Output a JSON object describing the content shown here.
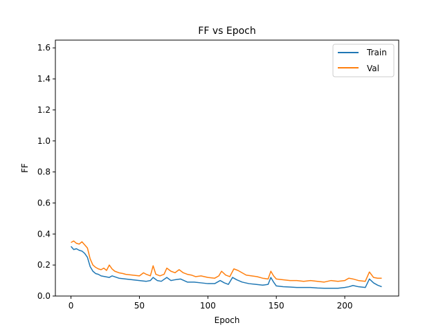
{
  "chart_data": {
    "type": "line",
    "title": "FF vs Epoch",
    "xlabel": "Epoch",
    "ylabel": "FF",
    "xlim": [
      -11.4,
      239.4
    ],
    "ylim": [
      0,
      1.65
    ],
    "xticks": [
      0,
      50,
      100,
      150,
      200
    ],
    "yticks": [
      0.0,
      0.2,
      0.4,
      0.6,
      0.8,
      1.0,
      1.2,
      1.4,
      1.6
    ],
    "grid": false,
    "legend_position": "top-right",
    "series": [
      {
        "name": "Train",
        "color": "#1f77b4",
        "points": [
          [
            0,
            0.32
          ],
          [
            2,
            0.3
          ],
          [
            4,
            0.305
          ],
          [
            6,
            0.295
          ],
          [
            8,
            0.29
          ],
          [
            10,
            0.275
          ],
          [
            12,
            0.25
          ],
          [
            14,
            0.19
          ],
          [
            16,
            0.16
          ],
          [
            18,
            0.145
          ],
          [
            20,
            0.14
          ],
          [
            22,
            0.13
          ],
          [
            25,
            0.125
          ],
          [
            28,
            0.12
          ],
          [
            30,
            0.13
          ],
          [
            35,
            0.115
          ],
          [
            40,
            0.11
          ],
          [
            45,
            0.105
          ],
          [
            50,
            0.1
          ],
          [
            55,
            0.095
          ],
          [
            58,
            0.1
          ],
          [
            60,
            0.12
          ],
          [
            63,
            0.1
          ],
          [
            66,
            0.095
          ],
          [
            70,
            0.12
          ],
          [
            73,
            0.1
          ],
          [
            76,
            0.105
          ],
          [
            80,
            0.11
          ],
          [
            85,
            0.09
          ],
          [
            90,
            0.09
          ],
          [
            95,
            0.085
          ],
          [
            100,
            0.08
          ],
          [
            105,
            0.08
          ],
          [
            109,
            0.1
          ],
          [
            112,
            0.085
          ],
          [
            115,
            0.075
          ],
          [
            118,
            0.12
          ],
          [
            121,
            0.105
          ],
          [
            125,
            0.09
          ],
          [
            130,
            0.08
          ],
          [
            135,
            0.075
          ],
          [
            140,
            0.07
          ],
          [
            144,
            0.075
          ],
          [
            146,
            0.12
          ],
          [
            148,
            0.09
          ],
          [
            150,
            0.065
          ],
          [
            155,
            0.06
          ],
          [
            160,
            0.058
          ],
          [
            165,
            0.055
          ],
          [
            170,
            0.055
          ],
          [
            175,
            0.055
          ],
          [
            180,
            0.052
          ],
          [
            185,
            0.05
          ],
          [
            190,
            0.05
          ],
          [
            195,
            0.05
          ],
          [
            200,
            0.055
          ],
          [
            203,
            0.06
          ],
          [
            206,
            0.068
          ],
          [
            210,
            0.06
          ],
          [
            215,
            0.055
          ],
          [
            218,
            0.11
          ],
          [
            221,
            0.085
          ],
          [
            224,
            0.07
          ],
          [
            227,
            0.06
          ]
        ]
      },
      {
        "name": "Val",
        "color": "#ff7f0e",
        "points": [
          [
            0,
            0.345
          ],
          [
            2,
            0.355
          ],
          [
            4,
            0.34
          ],
          [
            6,
            0.335
          ],
          [
            8,
            0.35
          ],
          [
            10,
            0.33
          ],
          [
            12,
            0.31
          ],
          [
            14,
            0.24
          ],
          [
            16,
            0.2
          ],
          [
            18,
            0.185
          ],
          [
            20,
            0.175
          ],
          [
            22,
            0.17
          ],
          [
            24,
            0.18
          ],
          [
            26,
            0.165
          ],
          [
            28,
            0.2
          ],
          [
            30,
            0.175
          ],
          [
            32,
            0.16
          ],
          [
            35,
            0.15
          ],
          [
            38,
            0.145
          ],
          [
            40,
            0.14
          ],
          [
            45,
            0.135
          ],
          [
            50,
            0.13
          ],
          [
            53,
            0.15
          ],
          [
            55,
            0.14
          ],
          [
            58,
            0.13
          ],
          [
            60,
            0.195
          ],
          [
            62,
            0.14
          ],
          [
            65,
            0.13
          ],
          [
            68,
            0.14
          ],
          [
            70,
            0.18
          ],
          [
            73,
            0.16
          ],
          [
            76,
            0.15
          ],
          [
            79,
            0.17
          ],
          [
            82,
            0.15
          ],
          [
            85,
            0.14
          ],
          [
            88,
            0.135
          ],
          [
            91,
            0.125
          ],
          [
            95,
            0.13
          ],
          [
            100,
            0.12
          ],
          [
            105,
            0.115
          ],
          [
            108,
            0.13
          ],
          [
            110,
            0.16
          ],
          [
            113,
            0.135
          ],
          [
            116,
            0.125
          ],
          [
            119,
            0.175
          ],
          [
            122,
            0.165
          ],
          [
            125,
            0.15
          ],
          [
            128,
            0.135
          ],
          [
            132,
            0.13
          ],
          [
            136,
            0.125
          ],
          [
            140,
            0.115
          ],
          [
            144,
            0.11
          ],
          [
            146,
            0.16
          ],
          [
            148,
            0.13
          ],
          [
            150,
            0.11
          ],
          [
            155,
            0.105
          ],
          [
            160,
            0.1
          ],
          [
            165,
            0.1
          ],
          [
            170,
            0.095
          ],
          [
            175,
            0.1
          ],
          [
            180,
            0.095
          ],
          [
            185,
            0.09
          ],
          [
            190,
            0.1
          ],
          [
            195,
            0.095
          ],
          [
            200,
            0.1
          ],
          [
            203,
            0.115
          ],
          [
            206,
            0.11
          ],
          [
            210,
            0.1
          ],
          [
            215,
            0.095
          ],
          [
            218,
            0.155
          ],
          [
            221,
            0.12
          ],
          [
            224,
            0.115
          ],
          [
            227,
            0.115
          ]
        ]
      }
    ]
  }
}
